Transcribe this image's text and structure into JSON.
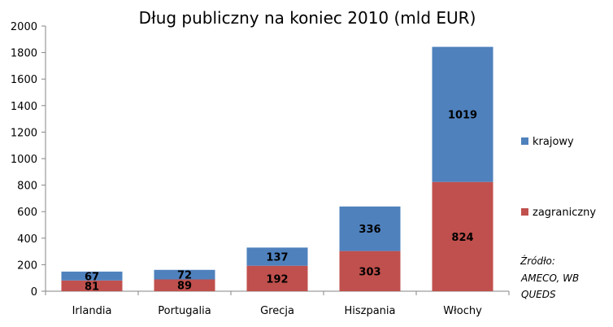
{
  "chart_data": {
    "type": "bar",
    "stacked": true,
    "title": "Dług publiczny na koniec 2010 (mld EUR)",
    "categories": [
      "Irlandia",
      "Portugalia",
      "Grecja",
      "Hiszpania",
      "Włochy"
    ],
    "series": [
      {
        "name": "zagraniczny",
        "color": "#c0504d",
        "values": [
          81,
          89,
          192,
          303,
          824
        ]
      },
      {
        "name": "krajowy",
        "color": "#4f81bd",
        "values": [
          67,
          72,
          137,
          336,
          1019
        ]
      }
    ],
    "ylim": [
      0,
      2000
    ],
    "yticks": [
      0,
      200,
      400,
      600,
      800,
      1000,
      1200,
      1400,
      1600,
      1800,
      2000
    ],
    "grid": false,
    "legend_position": "right"
  },
  "source_lines": [
    "Źródło:",
    "AMECO, WB",
    "QUEDS"
  ]
}
